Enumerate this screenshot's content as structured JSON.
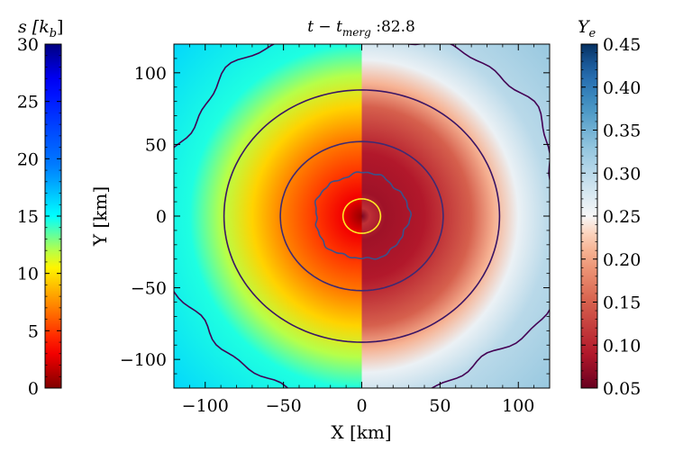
{
  "chart_data": {
    "type": "heatmap",
    "title_prefix": "t − t",
    "title_sub": "merg",
    "title_suffix": " :82.8",
    "xlabel": "X [km]",
    "ylabel": "Y [km]",
    "xlim": [
      -120,
      120
    ],
    "ylim": [
      -120,
      120
    ],
    "xticks": [
      -100,
      -50,
      0,
      50,
      100
    ],
    "yticks": [
      -100,
      -50,
      0,
      50,
      100
    ],
    "xtick_labels": [
      "−100",
      "−50",
      "0",
      "50",
      "100"
    ],
    "ytick_labels": [
      "−100",
      "−50",
      "0",
      "50",
      "100"
    ],
    "left_half": {
      "quantity_label": "s [k",
      "quantity_sub": "b",
      "quantity_suffix": "]",
      "colormap": "jet-like",
      "range": [
        0,
        30
      ],
      "ticks": [
        0,
        5,
        10,
        15,
        20,
        25,
        30
      ],
      "tick_labels": [
        "0",
        "5",
        "10",
        "15",
        "20",
        "25",
        "30"
      ],
      "radial_profile_r_km": [
        0,
        5,
        12,
        30,
        50,
        70,
        90,
        110,
        170
      ],
      "radial_profile_value": [
        0.6,
        1.5,
        3.0,
        5.0,
        7.0,
        9.5,
        12.0,
        14.5,
        16.5
      ]
    },
    "right_half": {
      "quantity_label": "Y",
      "quantity_sub": "e",
      "colormap": "RdBu",
      "range": [
        0.05,
        0.45
      ],
      "ticks": [
        0.05,
        0.1,
        0.15,
        0.2,
        0.25,
        0.3,
        0.35,
        0.4,
        0.45
      ],
      "tick_labels": [
        "0.05",
        "0.10",
        "0.15",
        "0.20",
        "0.25",
        "0.30",
        "0.35",
        "0.40",
        "0.45"
      ],
      "radial_profile_r_km": [
        0,
        5,
        15,
        40,
        70,
        85,
        100,
        120,
        170
      ],
      "radial_profile_value": [
        0.06,
        0.11,
        0.08,
        0.09,
        0.15,
        0.21,
        0.26,
        0.3,
        0.33
      ]
    },
    "density_contours": [
      {
        "radius_km": 12,
        "color": "#fde725",
        "wobble": false
      },
      {
        "radius_km": 30,
        "color": "#3b528b",
        "wobble": true
      },
      {
        "radius_km": 52,
        "color": "#3e2a73",
        "wobble": false
      },
      {
        "radius_km": 88,
        "color": "#3a1565",
        "wobble": false
      },
      {
        "radius_km": 130,
        "color": "#440154",
        "wobble": true
      }
    ],
    "grid": false,
    "colors": {
      "contour_outer": "#440154",
      "contour_inner": "#fde725"
    }
  }
}
